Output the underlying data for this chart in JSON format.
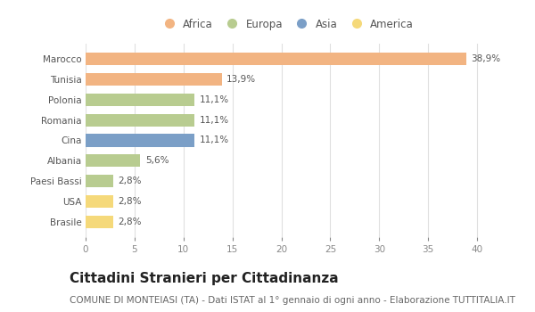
{
  "categories": [
    "Marocco",
    "Tunisia",
    "Polonia",
    "Romania",
    "Cina",
    "Albania",
    "Paesi Bassi",
    "USA",
    "Brasile"
  ],
  "values": [
    38.9,
    13.9,
    11.1,
    11.1,
    11.1,
    5.6,
    2.8,
    2.8,
    2.8
  ],
  "labels": [
    "38,9%",
    "13,9%",
    "11,1%",
    "11,1%",
    "11,1%",
    "5,6%",
    "2,8%",
    "2,8%",
    "2,8%"
  ],
  "colors": [
    "#f2b482",
    "#f2b482",
    "#b8cc90",
    "#b8cc90",
    "#7b9fc7",
    "#b8cc90",
    "#b8cc90",
    "#f5d97a",
    "#f5d97a"
  ],
  "legend_labels": [
    "Africa",
    "Europa",
    "Asia",
    "America"
  ],
  "legend_colors": [
    "#f2b482",
    "#b8cc90",
    "#7b9fc7",
    "#f5d97a"
  ],
  "xlim": [
    0,
    41
  ],
  "xticks": [
    0,
    5,
    10,
    15,
    20,
    25,
    30,
    35,
    40
  ],
  "title": "Cittadini Stranieri per Cittadinanza",
  "subtitle": "COMUNE DI MONTEIASI (TA) - Dati ISTAT al 1° gennaio di ogni anno - Elaborazione TUTTITALIA.IT",
  "bg_color": "#ffffff",
  "bar_height": 0.62,
  "title_fontsize": 11,
  "subtitle_fontsize": 7.5,
  "label_fontsize": 7.5,
  "tick_fontsize": 7.5,
  "legend_fontsize": 8.5
}
